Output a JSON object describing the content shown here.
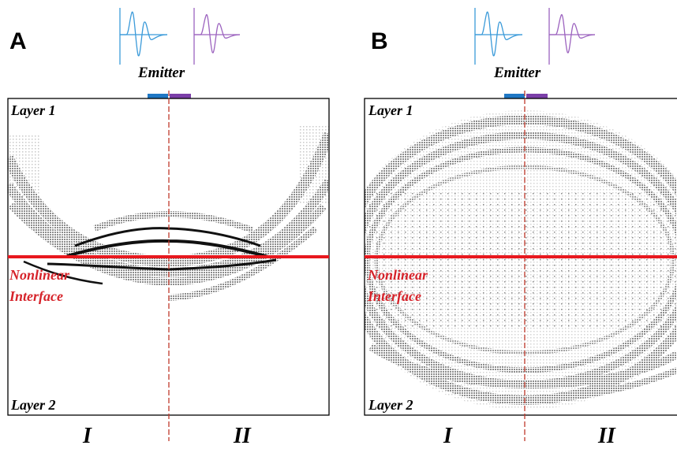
{
  "colors": {
    "emitter_blue": "#1f77c4",
    "emitter_purple": "#7b3fa8",
    "wavelet_blue": "#3a9ad9",
    "wavelet_purple": "#9c63bf",
    "interface_red": "#e8181e",
    "centerline_red": "#c0392b",
    "label_red": "#d6232a",
    "wavefront_gray": "#8c8c8c",
    "wavefront_dark": "#111111",
    "frame": "#000000"
  },
  "icons": {
    "wavelet_left": "ricker-wavelet-icon",
    "wavelet_right": "ricker-wavelet-icon"
  },
  "panels": [
    {
      "letter": "A",
      "emitter_label": "Emitter",
      "layer_top": "Layer 1",
      "layer_bottom": "Layer 2",
      "interface_line1": "Nonlinear",
      "interface_line2": "Interface",
      "region_left": "I",
      "region_right": "II"
    },
    {
      "letter": "B",
      "emitter_label": "Emitter",
      "layer_top": "Layer 1",
      "layer_bottom": "Layer 2",
      "interface_line1": "Nonlinear",
      "interface_line2": "Interface",
      "region_left": "I",
      "region_right": "II"
    }
  ]
}
